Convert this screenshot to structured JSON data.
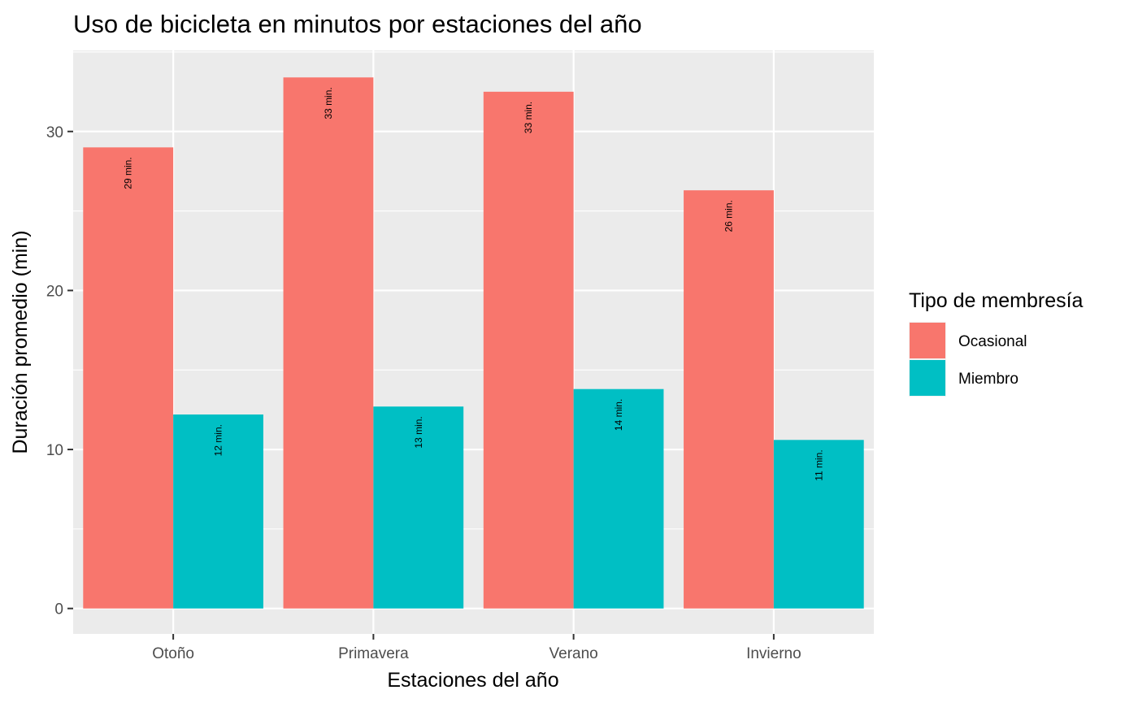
{
  "chart_data": {
    "type": "bar",
    "title": "Uso de bicicleta en minutos por estaciones del año",
    "xlabel": "Estaciones del año",
    "ylabel": "Duración promedio (min)",
    "categories": [
      "Otoño",
      "Primavera",
      "Verano",
      "Invierno"
    ],
    "series": [
      {
        "name": "Ocasional",
        "color": "#F8766D",
        "values": [
          29.0,
          33.4,
          32.5,
          26.3
        ],
        "labels": [
          "29 min.",
          "33 min.",
          "33 min.",
          "26 min."
        ]
      },
      {
        "name": "Miembro",
        "color": "#00BFC4",
        "values": [
          12.2,
          12.7,
          13.8,
          10.6
        ],
        "labels": [
          "12 min.",
          "13 min.",
          "14 min.",
          "11 min."
        ]
      }
    ],
    "ylim": [
      -1.6,
      35.1
    ],
    "yticks": [
      0,
      10,
      20,
      30
    ],
    "yticklabels": [
      "0",
      "10",
      "20",
      "30"
    ],
    "legend": {
      "title": "Tipo de membresía",
      "position": "right"
    },
    "grid": true,
    "panel_background": "#EBEBEB",
    "grid_color": "#FFFFFF"
  }
}
